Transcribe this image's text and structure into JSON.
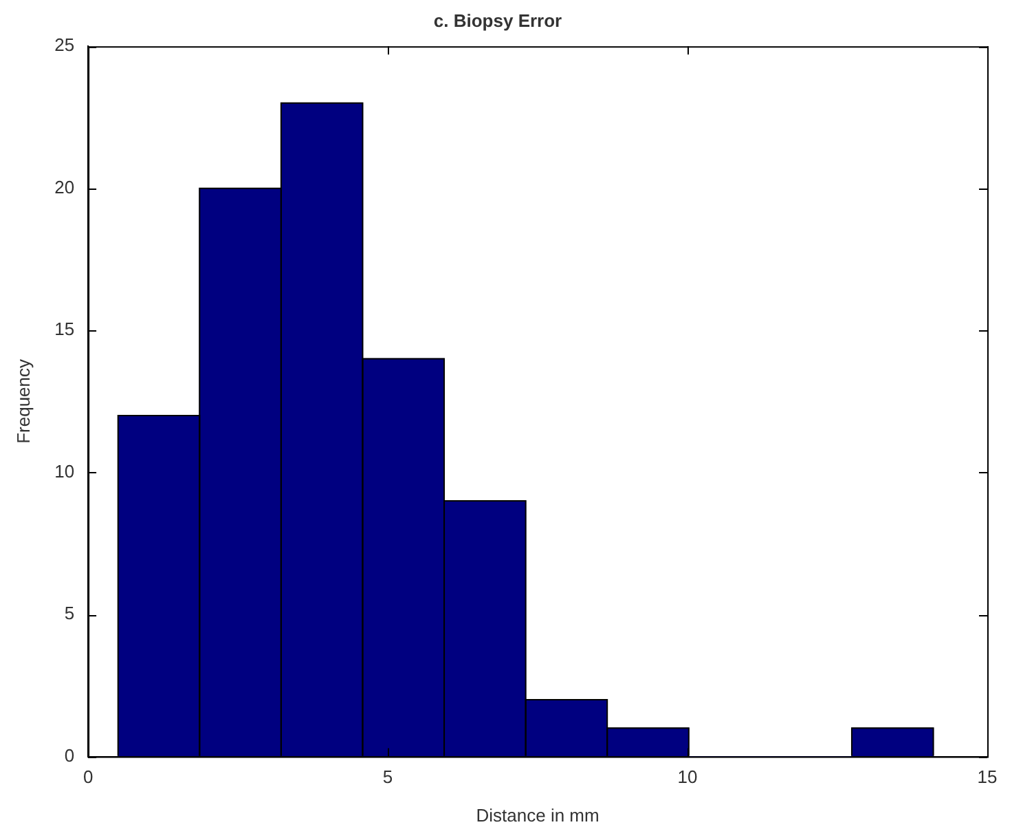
{
  "chart_data": {
    "type": "histogram",
    "title": "c. Biopsy Error",
    "xlabel": "Distance in mm",
    "ylabel": "Frequency",
    "bins": [
      0.5,
      1.86,
      3.22,
      4.58,
      5.94,
      7.3,
      8.66,
      10.02,
      11.38,
      12.74,
      14.1
    ],
    "values": [
      12,
      20,
      23,
      14,
      9,
      2,
      1,
      0,
      0,
      1
    ],
    "color": "#000080",
    "xlim": [
      0,
      15
    ],
    "xticks": [
      0,
      5,
      10,
      15
    ],
    "ylim": [
      0,
      25
    ],
    "yticks": [
      0,
      5,
      10,
      15,
      20,
      25
    ],
    "grid": false
  }
}
